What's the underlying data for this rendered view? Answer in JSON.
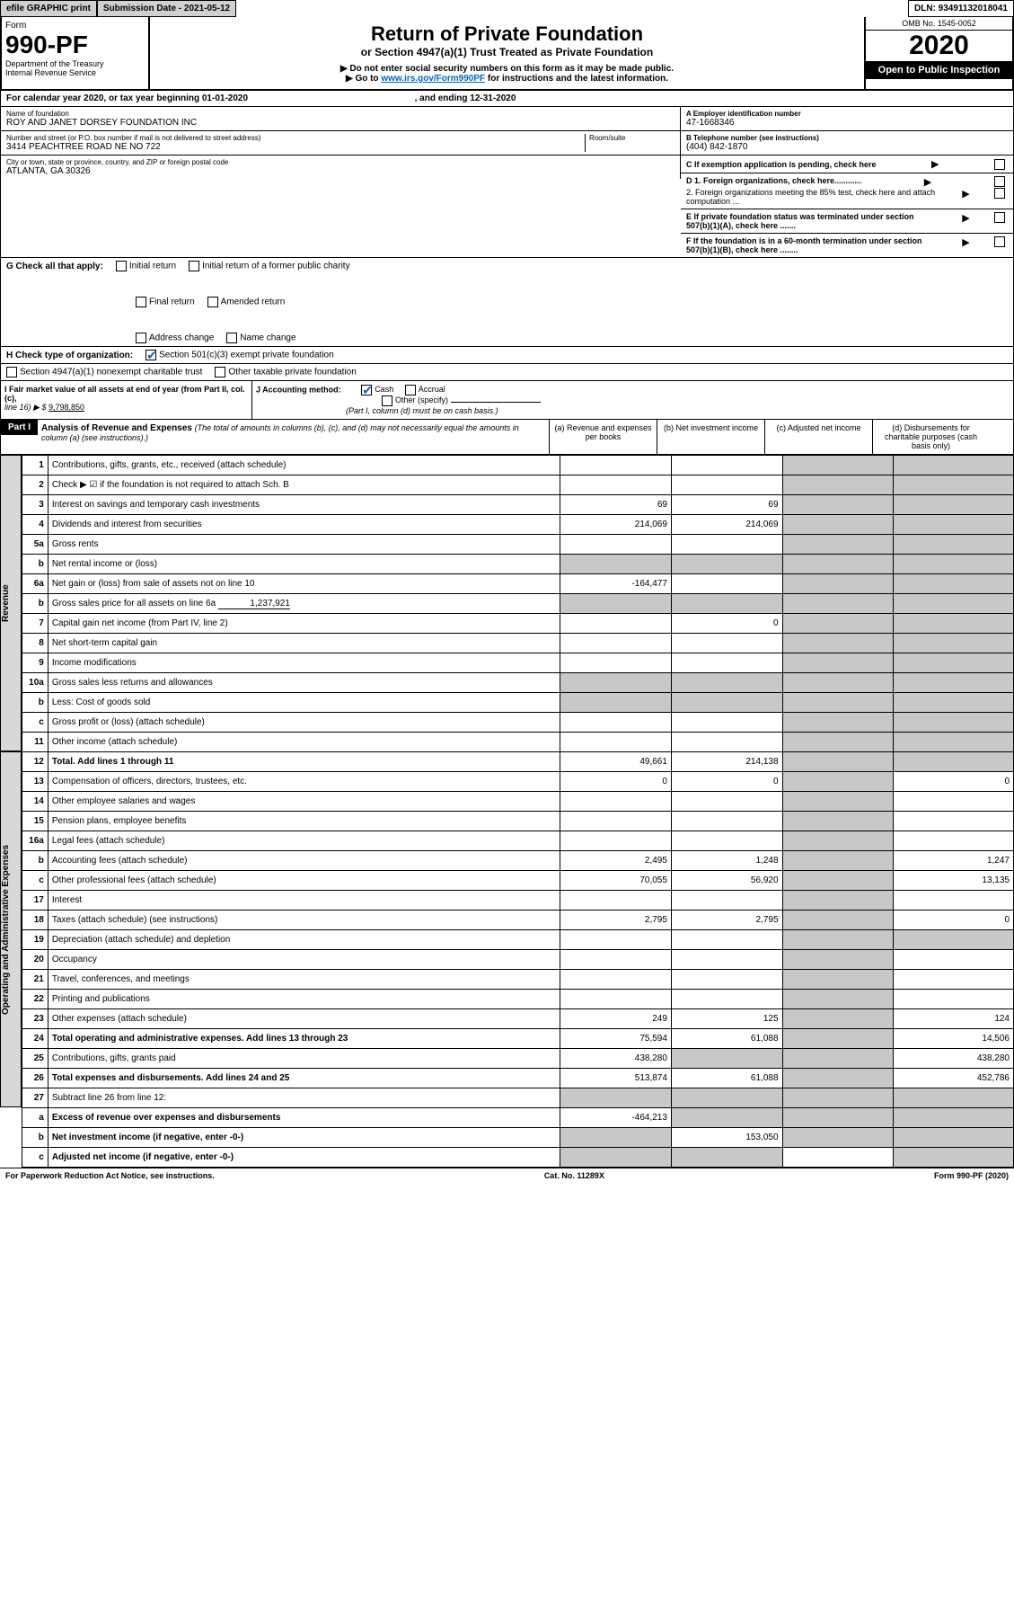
{
  "topbar": {
    "efile": "efile GRAPHIC print",
    "submission_label": "Submission Date - 2021-05-12",
    "dln": "DLN: 93491132018041"
  },
  "header": {
    "form_word": "Form",
    "form_number": "990-PF",
    "dept": "Department of the Treasury",
    "irs": "Internal Revenue Service",
    "title": "Return of Private Foundation",
    "subtitle": "or Section 4947(a)(1) Trust Treated as Private Foundation",
    "note1": "▶ Do not enter social security numbers on this form as it may be made public.",
    "note2_pre": "▶ Go to ",
    "note2_link": "www.irs.gov/Form990PF",
    "note2_post": " for instructions and the latest information.",
    "omb": "OMB No. 1545-0052",
    "year": "2020",
    "open": "Open to Public Inspection"
  },
  "calyear": {
    "text_pre": "For calendar year 2020, or tax year beginning ",
    "begin": "01-01-2020",
    "mid": " , and ending ",
    "end": "12-31-2020"
  },
  "ident": {
    "name_label": "Name of foundation",
    "name": "ROY AND JANET DORSEY FOUNDATION INC",
    "addr_label": "Number and street (or P.O. box number if mail is not delivered to street address)",
    "addr": "3414 PEACHTREE ROAD NE NO 722",
    "room_label": "Room/suite",
    "city_label": "City or town, state or province, country, and ZIP or foreign postal code",
    "city": "ATLANTA, GA  30326",
    "ein_label": "A Employer identification number",
    "ein": "47-1668346",
    "phone_label": "B Telephone number (see instructions)",
    "phone": "(404) 842-1870",
    "c_label": "C If exemption application is pending, check here",
    "d1": "D 1. Foreign organizations, check here............",
    "d2": "2. Foreign organizations meeting the 85% test, check here and attach computation ...",
    "e": "E If private foundation status was terminated under section 507(b)(1)(A), check here .......",
    "f": "F If the foundation is in a 60-month termination under section 507(b)(1)(B), check here ........"
  },
  "g": {
    "label": "G Check all that apply:",
    "initial": "Initial return",
    "initial_former": "Initial return of a former public charity",
    "final": "Final return",
    "amended": "Amended return",
    "addr_change": "Address change",
    "name_change": "Name change"
  },
  "h": {
    "label": "H Check type of organization:",
    "c3": "Section 501(c)(3) exempt private foundation",
    "4947": "Section 4947(a)(1) nonexempt charitable trust",
    "other_taxable": "Other taxable private foundation"
  },
  "i": {
    "label": "I Fair market value of all assets at end of year (from Part II, col. (c),",
    "line16": "line 16) ▶ $ ",
    "value": "9,798,850"
  },
  "j": {
    "label": "J Accounting method:",
    "cash": "Cash",
    "accrual": "Accrual",
    "other": "Other (specify)",
    "note": "(Part I, column (d) must be on cash basis.)"
  },
  "part1": {
    "tag": "Part I",
    "title": "Analysis of Revenue and Expenses",
    "sub": "(The total of amounts in columns (b), (c), and (d) may not necessarily equal the amounts in column (a) (see instructions).)",
    "col_a": "(a)   Revenue and expenses per books",
    "col_b": "(b)  Net investment income",
    "col_c": "(c)  Adjusted net income",
    "col_d": "(d)  Disbursements for charitable purposes (cash basis only)"
  },
  "side": {
    "revenue": "Revenue",
    "opex": "Operating and Administrative Expenses"
  },
  "rows": {
    "r1": {
      "n": "1",
      "d": "Contributions, gifts, grants, etc., received (attach schedule)"
    },
    "r2": {
      "n": "2",
      "d": "Check ▶ ☑ if the foundation is not required to attach Sch. B"
    },
    "r3": {
      "n": "3",
      "d": "Interest on savings and temporary cash investments",
      "a": "69",
      "b": "69"
    },
    "r4": {
      "n": "4",
      "d": "Dividends and interest from securities",
      "a": "214,069",
      "b": "214,069"
    },
    "r5a": {
      "n": "5a",
      "d": "Gross rents"
    },
    "r5b": {
      "n": "b",
      "d": "Net rental income or (loss)"
    },
    "r6a": {
      "n": "6a",
      "d": "Net gain or (loss) from sale of assets not on line 10",
      "a": "-164,477"
    },
    "r6b": {
      "n": "b",
      "d": "Gross sales price for all assets on line 6a",
      "inline": "1,237,921"
    },
    "r7": {
      "n": "7",
      "d": "Capital gain net income (from Part IV, line 2)",
      "b": "0"
    },
    "r8": {
      "n": "8",
      "d": "Net short-term capital gain"
    },
    "r9": {
      "n": "9",
      "d": "Income modifications"
    },
    "r10a": {
      "n": "10a",
      "d": "Gross sales less returns and allowances"
    },
    "r10b": {
      "n": "b",
      "d": "Less: Cost of goods sold"
    },
    "r10c": {
      "n": "c",
      "d": "Gross profit or (loss) (attach schedule)"
    },
    "r11": {
      "n": "11",
      "d": "Other income (attach schedule)"
    },
    "r12": {
      "n": "12",
      "d": "Total. Add lines 1 through 11",
      "a": "49,661",
      "b": "214,138"
    },
    "r13": {
      "n": "13",
      "d": "Compensation of officers, directors, trustees, etc.",
      "a": "0",
      "b": "0",
      "dd": "0"
    },
    "r14": {
      "n": "14",
      "d": "Other employee salaries and wages"
    },
    "r15": {
      "n": "15",
      "d": "Pension plans, employee benefits"
    },
    "r16a": {
      "n": "16a",
      "d": "Legal fees (attach schedule)"
    },
    "r16b": {
      "n": "b",
      "d": "Accounting fees (attach schedule)",
      "a": "2,495",
      "b": "1,248",
      "dd": "1,247"
    },
    "r16c": {
      "n": "c",
      "d": "Other professional fees (attach schedule)",
      "a": "70,055",
      "b": "56,920",
      "dd": "13,135"
    },
    "r17": {
      "n": "17",
      "d": "Interest"
    },
    "r18": {
      "n": "18",
      "d": "Taxes (attach schedule) (see instructions)",
      "a": "2,795",
      "b": "2,795",
      "dd": "0"
    },
    "r19": {
      "n": "19",
      "d": "Depreciation (attach schedule) and depletion"
    },
    "r20": {
      "n": "20",
      "d": "Occupancy"
    },
    "r21": {
      "n": "21",
      "d": "Travel, conferences, and meetings"
    },
    "r22": {
      "n": "22",
      "d": "Printing and publications"
    },
    "r23": {
      "n": "23",
      "d": "Other expenses (attach schedule)",
      "a": "249",
      "b": "125",
      "dd": "124"
    },
    "r24": {
      "n": "24",
      "d": "Total operating and administrative expenses. Add lines 13 through 23",
      "a": "75,594",
      "b": "61,088",
      "dd": "14,506"
    },
    "r25": {
      "n": "25",
      "d": "Contributions, gifts, grants paid",
      "a": "438,280",
      "dd": "438,280"
    },
    "r26": {
      "n": "26",
      "d": "Total expenses and disbursements. Add lines 24 and 25",
      "a": "513,874",
      "b": "61,088",
      "dd": "452,786"
    },
    "r27": {
      "n": "27",
      "d": "Subtract line 26 from line 12:"
    },
    "r27a": {
      "n": "a",
      "d": "Excess of revenue over expenses and disbursements",
      "a": "-464,213"
    },
    "r27b": {
      "n": "b",
      "d": "Net investment income (if negative, enter -0-)",
      "b": "153,050"
    },
    "r27c": {
      "n": "c",
      "d": "Adjusted net income (if negative, enter -0-)"
    }
  },
  "footer": {
    "left": "For Paperwork Reduction Act Notice, see instructions.",
    "mid": "Cat. No. 11289X",
    "right": "Form 990-PF (2020)"
  },
  "colors": {
    "grey_bg": "#c8c8c8",
    "header_grey": "#d0d0d0",
    "link": "#0066cc",
    "check_green": "#1a7f1a"
  }
}
